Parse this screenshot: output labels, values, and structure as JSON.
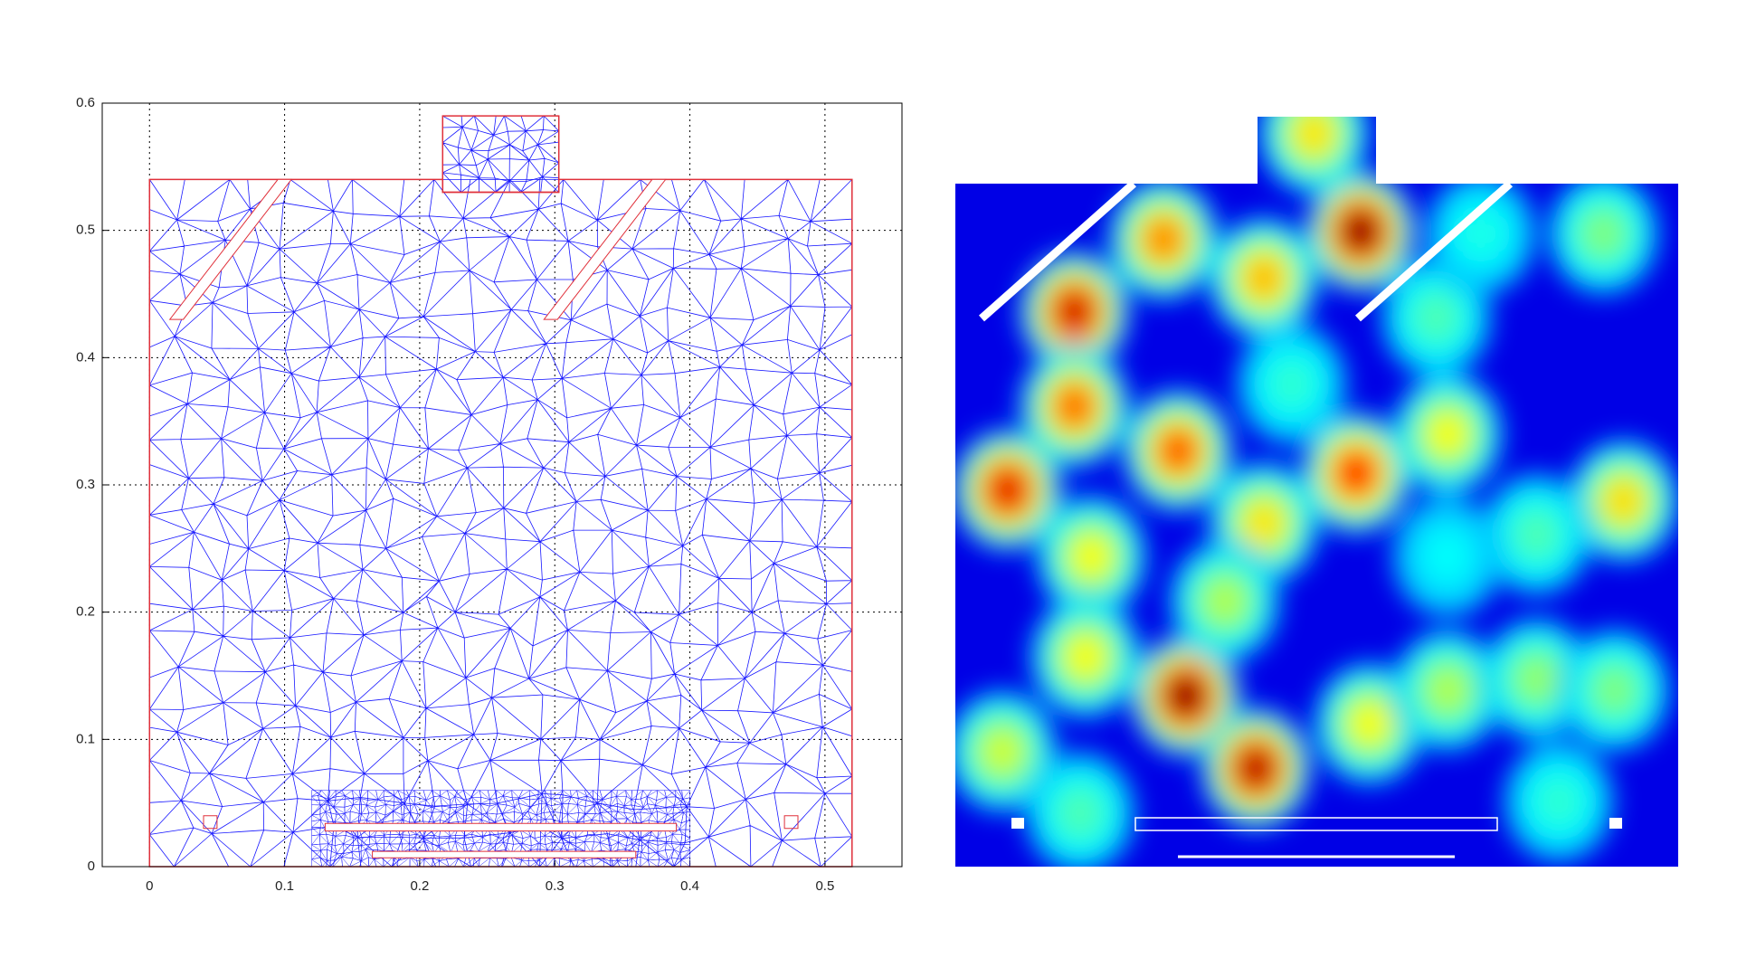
{
  "chart_data": [
    {
      "type": "mesh",
      "xlim": [
        -0.035,
        0.557
      ],
      "ylim": [
        0,
        0.6
      ],
      "xticks": [
        0,
        0.1,
        0.2,
        0.3,
        0.4,
        0.5
      ],
      "yticks": [
        0,
        0.1,
        0.2,
        0.3,
        0.4,
        0.5,
        0.6
      ],
      "grid": true,
      "mesh_color": "#1a1aff",
      "boundary_color": "#e0303a"
    },
    {
      "type": "heatmap",
      "colormap": "jet"
    }
  ]
}
